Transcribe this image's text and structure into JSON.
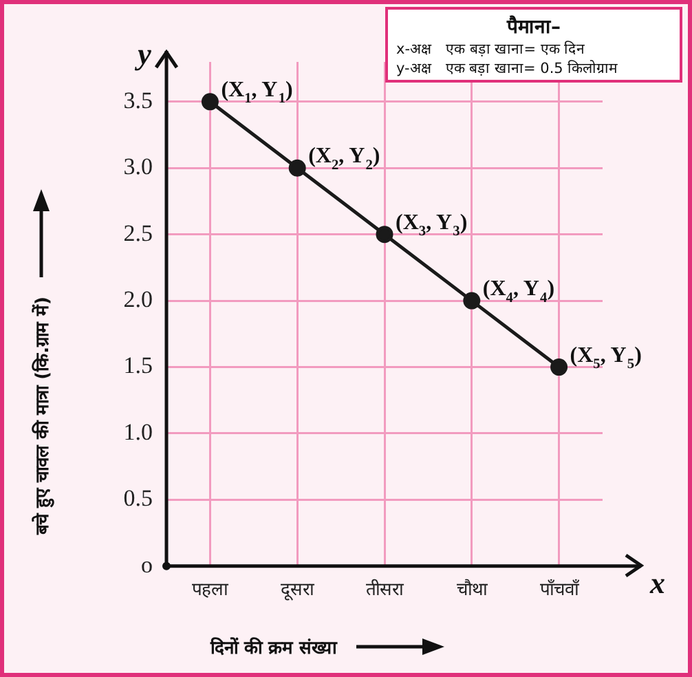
{
  "chart_data": {
    "type": "line",
    "xlabel": "दिनों की क्रम संख्या",
    "ylabel": "बचे हुए चावल की मात्रा (कि.ग्राम में)",
    "categories": [
      "पहला",
      "दूसरा",
      "तीसरा",
      "चौथा",
      "पाँचवाँ"
    ],
    "series": [
      {
        "color": "#1a1a1a",
        "values": [
          3.5,
          3.0,
          2.5,
          2.0,
          1.5
        ]
      }
    ],
    "ylim": [
      0,
      3.8
    ],
    "yticks": [
      {
        "value": 0,
        "label": "o"
      },
      {
        "value": 0.5,
        "label": "0.5"
      },
      {
        "value": 1,
        "label": "1.0"
      },
      {
        "value": 1.5,
        "label": "1.5"
      },
      {
        "value": 2,
        "label": "2.0"
      },
      {
        "value": 2.5,
        "label": "2.5"
      },
      {
        "value": 3,
        "label": "3.0"
      },
      {
        "value": 3.5,
        "label": "3.5"
      }
    ],
    "grid": true,
    "marker": "circle",
    "line_style": "solid",
    "legend": false,
    "annotations": [
      "पैमाना–",
      "x-अक्ष   एक बड़ा खाना= एक दिन",
      "y-अक्ष   एक बड़ा खाना= 0.5 किलोग्राम",
      "x",
      "y",
      {
        "text": "(X$_{1}$, Y$_{1}$)",
        "x": "पहला",
        "y": 3.5
      },
      {
        "text": "(X$_{2}$, Y$_{2}$)",
        "x": "दूसरा",
        "y": 3.0
      },
      {
        "text": "(X$_{3}$, Y$_{3}$)",
        "x": "तीसरा",
        "y": 2.5
      },
      {
        "text": "(X$_{4}$, Y$_{4}$)",
        "x": "चौथा",
        "y": 2.0
      },
      {
        "text": "(X$_{5}$, Y$_{5}$)",
        "x": "पाँचवाँ",
        "y": 1.5
      }
    ]
  }
}
